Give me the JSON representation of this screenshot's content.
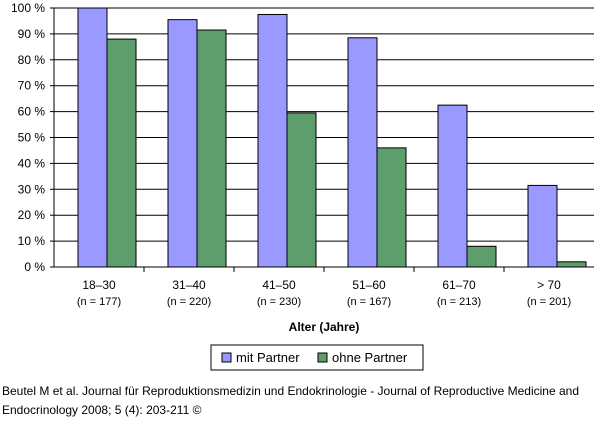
{
  "chart_data": {
    "type": "bar",
    "categories": [
      "18–30",
      "31–40",
      "41–50",
      "51–60",
      "61–70",
      "> 70"
    ],
    "category_counts": [
      "(n = 177)",
      "(n = 220)",
      "(n = 230)",
      "(n = 167)",
      "(n = 213)",
      "(n = 201)"
    ],
    "series": [
      {
        "name": "mit Partner",
        "values": [
          100,
          95.5,
          97.5,
          88.5,
          62.5,
          31.5
        ],
        "color": "#9999ff"
      },
      {
        "name": "ohne Partner",
        "values": [
          88,
          91.5,
          59.5,
          46,
          8,
          2
        ],
        "color": "#5e9e6c"
      }
    ],
    "xlabel": "Alter (Jahre)",
    "ylabel": "",
    "ylim": [
      0,
      100
    ],
    "yticks": [
      "0 %",
      "10 %",
      "20 %",
      "30 %",
      "40 %",
      "50 %",
      "60 %",
      "70 %",
      "80 %",
      "90 %",
      "100 %"
    ],
    "grid": true,
    "legend_position": "bottom"
  },
  "citation": "Beutel M et al. Journal für Reproduktionsmedizin und Endokrinologie - Journal of Reproductive Medicine and Endocrinology 2008; 5 (4): 203-211 ©"
}
